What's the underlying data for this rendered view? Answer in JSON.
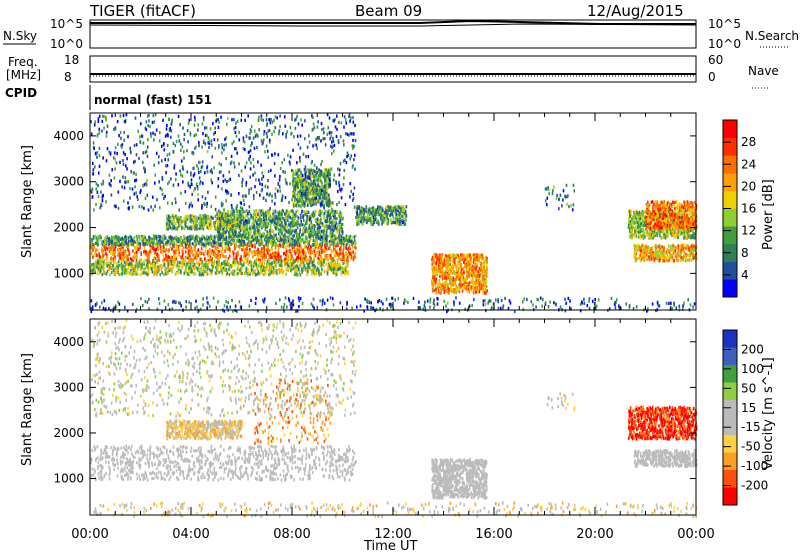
{
  "header": {
    "radar": "TIGER (fitACF)",
    "beam": "Beam 09",
    "date": "12/Aug/2015"
  },
  "strip_noise": {
    "left_label": "N.Sky",
    "right_label": "N.Search",
    "left_ticks": [
      "10^5",
      "10^0"
    ],
    "right_ticks": [
      "10^5",
      "10^0"
    ]
  },
  "strip_freq": {
    "left_label_1": "Freq.",
    "left_label_2": "[MHz]",
    "right_label": "Nave",
    "left_ticks": [
      "18",
      "8"
    ],
    "right_ticks": [
      "60",
      "0"
    ]
  },
  "strip_cpid": {
    "label": "CPID",
    "text": "normal (fast) 151"
  },
  "x_axis": {
    "label": "Time UT",
    "ticks": [
      "00:00",
      "04:00",
      "08:00",
      "12:00",
      "16:00",
      "20:00",
      "00:00"
    ]
  },
  "colors": {
    "power_scale": [
      "#0000ff",
      "#1f4fa0",
      "#2f7f55",
      "#3f9f3f",
      "#8fcf2f",
      "#efcf00",
      "#ff9f00",
      "#ff6f00",
      "#ff2f00",
      "#ff0000"
    ],
    "velocity_scale": [
      "#2030c0",
      "#4060c0",
      "#3fa040",
      "#8fd040",
      "#bbbbbb",
      "#bbbbbb",
      "#ffd040",
      "#ff9f20",
      "#ff5010",
      "#ff0000"
    ],
    "ground_scatter": "#bbbbbb"
  },
  "chart_data": [
    {
      "type": "heatmap",
      "panel": "power",
      "ylabel": "Slant Range [km]",
      "yticks": [
        "1000",
        "2000",
        "3000",
        "4000"
      ],
      "ylim": [
        200,
        4500
      ],
      "xlim_hours": [
        0,
        24
      ],
      "colorbar": {
        "label": "Power [dB]",
        "ticks": [
          "4",
          "8",
          "12",
          "16",
          "20",
          "24",
          "28"
        ],
        "range": [
          0,
          32
        ]
      },
      "regions": [
        {
          "t": [
            0.0,
            10.5
          ],
          "r": [
            1300,
            1650
          ],
          "v": 24
        },
        {
          "t": [
            0.0,
            10.2
          ],
          "r": [
            1000,
            1300
          ],
          "v": 14
        },
        {
          "t": [
            0.0,
            10.5
          ],
          "r": [
            1650,
            1850
          ],
          "v": 10
        },
        {
          "t": [
            5.0,
            10.0
          ],
          "r": [
            1850,
            2400
          ],
          "v": 10
        },
        {
          "t": [
            8.0,
            9.5
          ],
          "r": [
            2500,
            3300
          ],
          "v": 12
        },
        {
          "t": [
            3.0,
            6.0
          ],
          "r": [
            2000,
            2300
          ],
          "v": 12
        },
        {
          "t": [
            13.5,
            15.7
          ],
          "r": [
            600,
            1450
          ],
          "v": 22
        },
        {
          "t": [
            21.5,
            24.0
          ],
          "r": [
            1300,
            1650
          ],
          "v": 20
        },
        {
          "t": [
            21.3,
            24.0
          ],
          "r": [
            1800,
            2400
          ],
          "v": 14
        },
        {
          "t": [
            22.0,
            24.0
          ],
          "r": [
            2000,
            2600
          ],
          "v": 24
        },
        {
          "t": [
            0.0,
            24.0
          ],
          "r": [
            200,
            500
          ],
          "v": 6
        },
        {
          "t": [
            0.0,
            10.5
          ],
          "r": [
            2400,
            4500
          ],
          "v": 6
        },
        {
          "t": [
            18.0,
            19.2
          ],
          "r": [
            2400,
            3000
          ],
          "v": 8
        },
        {
          "t": [
            10.5,
            12.5
          ],
          "r": [
            2100,
            2500
          ],
          "v": 10
        }
      ]
    },
    {
      "type": "heatmap",
      "panel": "velocity",
      "ylabel": "Slant Range [km]",
      "yticks": [
        "1000",
        "2000",
        "3000",
        "4000"
      ],
      "ylim": [
        200,
        4500
      ],
      "xlim_hours": [
        0,
        24
      ],
      "colorbar": {
        "label": "Velocity [m s^-1]",
        "ticks": [
          "200",
          "100",
          "50",
          "15",
          "-15",
          "-50",
          "-100",
          "-200"
        ],
        "range": [
          -250,
          250
        ]
      },
      "regions": [
        {
          "t": [
            0.0,
            10.5
          ],
          "r": [
            1000,
            1750
          ],
          "v": 0,
          "gs": true
        },
        {
          "t": [
            13.5,
            15.7
          ],
          "r": [
            600,
            1450
          ],
          "v": 0,
          "gs": true
        },
        {
          "t": [
            21.5,
            24.0
          ],
          "r": [
            1300,
            1650
          ],
          "v": 0,
          "gs": true
        },
        {
          "t": [
            21.3,
            24.0
          ],
          "r": [
            1900,
            2600
          ],
          "v": -200
        },
        {
          "t": [
            6.5,
            9.5
          ],
          "r": [
            1800,
            3200
          ],
          "v": -120
        },
        {
          "t": [
            3.0,
            6.0
          ],
          "r": [
            1900,
            2300
          ],
          "v": -60
        },
        {
          "t": [
            0.0,
            10.5
          ],
          "r": [
            2400,
            4500
          ],
          "v": 0
        },
        {
          "t": [
            0.0,
            24.0
          ],
          "r": [
            200,
            500
          ],
          "v": -40
        },
        {
          "t": [
            18.0,
            19.2
          ],
          "r": [
            2500,
            2900
          ],
          "v": -20
        }
      ]
    }
  ]
}
